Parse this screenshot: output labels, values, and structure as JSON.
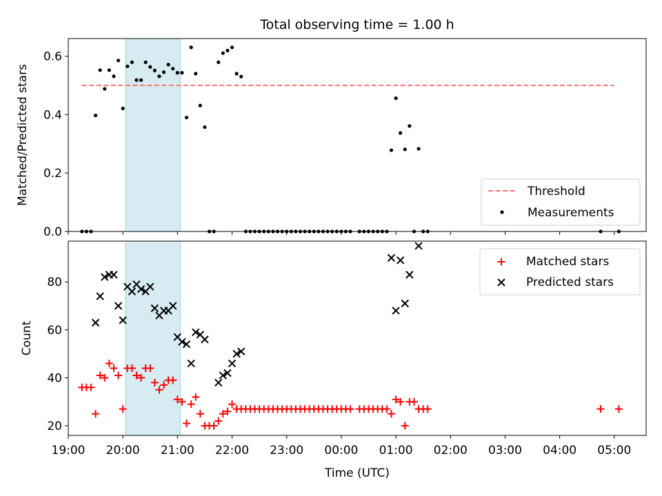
{
  "chart_data": [
    {
      "type": "scatter",
      "title": "Total observing time = 1.00 h",
      "xlabel": "",
      "ylabel": "Matched/Predicted stars",
      "xlim": [
        "19:00",
        "05:35"
      ],
      "ylim": [
        0,
        0.66
      ],
      "yticks": [
        "0.0",
        "0.2",
        "0.4",
        "0.6"
      ],
      "shaded_interval": [
        "20:03",
        "21:03"
      ],
      "legend_position": "lower right",
      "threshold": {
        "name": "Threshold",
        "value": 0.5,
        "x_start": "19:15",
        "x_end": "05:00",
        "color": "#ff7070",
        "style": "dashed"
      },
      "series": [
        {
          "name": "Measurements",
          "color": "#000000",
          "points": [
            [
              "19:15",
              0
            ],
            [
              "19:20",
              0
            ],
            [
              "19:25",
              0
            ],
            [
              "19:30",
              0.397
            ],
            [
              "19:35",
              0.552
            ],
            [
              "19:40",
              0.488
            ],
            [
              "19:45",
              0.552
            ],
            [
              "19:50",
              0.531
            ],
            [
              "19:55",
              0.585
            ],
            [
              "20:00",
              0.421
            ],
            [
              "20:05",
              0.565
            ],
            [
              "20:10",
              0.579
            ],
            [
              "20:15",
              0.518
            ],
            [
              "20:20",
              0.518
            ],
            [
              "20:25",
              0.579
            ],
            [
              "20:30",
              0.563
            ],
            [
              "20:35",
              0.551
            ],
            [
              "20:40",
              0.531
            ],
            [
              "20:45",
              0.545
            ],
            [
              "20:50",
              0.571
            ],
            [
              "20:55",
              0.557
            ],
            [
              "21:00",
              0.543
            ],
            [
              "21:05",
              0.543
            ],
            [
              "21:10",
              0.39
            ],
            [
              "21:15",
              0.63
            ],
            [
              "21:20",
              0.54
            ],
            [
              "21:25",
              0.431
            ],
            [
              "21:30",
              0.357
            ],
            [
              "21:35",
              0
            ],
            [
              "21:40",
              0
            ],
            [
              "21:45",
              0.579
            ],
            [
              "21:50",
              0.61
            ],
            [
              "21:55",
              0.619
            ],
            [
              "22:00",
              0.63
            ],
            [
              "22:05",
              0.54
            ],
            [
              "22:10",
              0.53
            ],
            [
              "22:15",
              0
            ],
            [
              "22:20",
              0
            ],
            [
              "22:25",
              0
            ],
            [
              "22:30",
              0
            ],
            [
              "22:35",
              0
            ],
            [
              "22:40",
              0
            ],
            [
              "22:45",
              0
            ],
            [
              "22:50",
              0
            ],
            [
              "22:55",
              0
            ],
            [
              "23:00",
              0
            ],
            [
              "23:05",
              0
            ],
            [
              "23:10",
              0
            ],
            [
              "23:15",
              0
            ],
            [
              "23:20",
              0
            ],
            [
              "23:25",
              0
            ],
            [
              "23:30",
              0
            ],
            [
              "23:35",
              0
            ],
            [
              "23:40",
              0
            ],
            [
              "23:45",
              0
            ],
            [
              "23:50",
              0
            ],
            [
              "23:55",
              0
            ],
            [
              "00:00",
              0
            ],
            [
              "00:05",
              0
            ],
            [
              "00:10",
              0
            ],
            [
              "00:20",
              0
            ],
            [
              "00:25",
              0
            ],
            [
              "00:30",
              0
            ],
            [
              "00:35",
              0
            ],
            [
              "00:40",
              0
            ],
            [
              "00:45",
              0
            ],
            [
              "00:50",
              0
            ],
            [
              "00:55",
              0.278
            ],
            [
              "01:00",
              0.456
            ],
            [
              "01:05",
              0.337
            ],
            [
              "01:10",
              0.281
            ],
            [
              "01:15",
              0.361
            ],
            [
              "01:20",
              0
            ],
            [
              "01:25",
              0.283
            ],
            [
              "01:30",
              0
            ],
            [
              "01:35",
              0
            ],
            [
              "04:45",
              0
            ],
            [
              "05:05",
              0
            ]
          ]
        }
      ]
    },
    {
      "type": "scatter",
      "title": "",
      "xlabel": "Time (UTC)",
      "ylabel": "Count",
      "xlim": [
        "19:00",
        "05:35"
      ],
      "ylim": [
        16,
        97
      ],
      "yticks": [
        "20",
        "40",
        "60",
        "80"
      ],
      "xticks": [
        "19:00",
        "20:00",
        "21:00",
        "22:00",
        "23:00",
        "00:00",
        "01:00",
        "02:00",
        "03:00",
        "04:00",
        "05:00"
      ],
      "shaded_interval": [
        "20:03",
        "21:03"
      ],
      "legend_position": "upper right",
      "series": [
        {
          "name": "Matched stars",
          "color": "#ff0000",
          "marker": "+",
          "points": [
            [
              "19:15",
              36
            ],
            [
              "19:20",
              36
            ],
            [
              "19:25",
              36
            ],
            [
              "19:30",
              25
            ],
            [
              "19:35",
              41
            ],
            [
              "19:40",
              40
            ],
            [
              "19:45",
              46
            ],
            [
              "19:50",
              44
            ],
            [
              "19:55",
              41
            ],
            [
              "20:00",
              27
            ],
            [
              "20:05",
              44
            ],
            [
              "20:10",
              44
            ],
            [
              "20:15",
              41
            ],
            [
              "20:20",
              40
            ],
            [
              "20:25",
              44
            ],
            [
              "20:30",
              44
            ],
            [
              "20:35",
              38
            ],
            [
              "20:40",
              35
            ],
            [
              "20:45",
              37
            ],
            [
              "20:50",
              39
            ],
            [
              "20:55",
              39
            ],
            [
              "21:00",
              31
            ],
            [
              "21:05",
              30
            ],
            [
              "21:10",
              21
            ],
            [
              "21:15",
              29
            ],
            [
              "21:20",
              32
            ],
            [
              "21:25",
              25
            ],
            [
              "21:30",
              20
            ],
            [
              "21:35",
              20
            ],
            [
              "21:40",
              20
            ],
            [
              "21:45",
              22
            ],
            [
              "21:50",
              25
            ],
            [
              "21:55",
              26
            ],
            [
              "22:00",
              29
            ],
            [
              "22:05",
              27
            ],
            [
              "22:10",
              27
            ],
            [
              "22:15",
              27
            ],
            [
              "22:20",
              27
            ],
            [
              "22:25",
              27
            ],
            [
              "22:30",
              27
            ],
            [
              "22:35",
              27
            ],
            [
              "22:40",
              27
            ],
            [
              "22:45",
              27
            ],
            [
              "22:50",
              27
            ],
            [
              "22:55",
              27
            ],
            [
              "23:00",
              27
            ],
            [
              "23:05",
              27
            ],
            [
              "23:10",
              27
            ],
            [
              "23:15",
              27
            ],
            [
              "23:20",
              27
            ],
            [
              "23:25",
              27
            ],
            [
              "23:30",
              27
            ],
            [
              "23:35",
              27
            ],
            [
              "23:40",
              27
            ],
            [
              "23:45",
              27
            ],
            [
              "23:50",
              27
            ],
            [
              "23:55",
              27
            ],
            [
              "00:00",
              27
            ],
            [
              "00:05",
              27
            ],
            [
              "00:10",
              27
            ],
            [
              "00:20",
              27
            ],
            [
              "00:25",
              27
            ],
            [
              "00:30",
              27
            ],
            [
              "00:35",
              27
            ],
            [
              "00:40",
              27
            ],
            [
              "00:45",
              27
            ],
            [
              "00:50",
              27
            ],
            [
              "00:55",
              25
            ],
            [
              "01:00",
              31
            ],
            [
              "01:05",
              30
            ],
            [
              "01:10",
              20
            ],
            [
              "01:15",
              30
            ],
            [
              "01:20",
              30
            ],
            [
              "01:25",
              27
            ],
            [
              "01:30",
              27
            ],
            [
              "01:35",
              27
            ],
            [
              "04:45",
              27
            ],
            [
              "05:05",
              27
            ]
          ]
        },
        {
          "name": "Predicted stars",
          "color": "#000000",
          "marker": "x",
          "points": [
            [
              "19:30",
              63
            ],
            [
              "19:35",
              74
            ],
            [
              "19:40",
              82
            ],
            [
              "19:45",
              83
            ],
            [
              "19:50",
              83
            ],
            [
              "19:55",
              70
            ],
            [
              "20:00",
              64
            ],
            [
              "20:05",
              78
            ],
            [
              "20:10",
              76
            ],
            [
              "20:15",
              79
            ],
            [
              "20:20",
              77
            ],
            [
              "20:25",
              76
            ],
            [
              "20:30",
              78
            ],
            [
              "20:35",
              69
            ],
            [
              "20:40",
              66
            ],
            [
              "20:45",
              68
            ],
            [
              "20:50",
              68
            ],
            [
              "20:55",
              70
            ],
            [
              "21:00",
              57
            ],
            [
              "21:05",
              55
            ],
            [
              "21:10",
              54
            ],
            [
              "21:15",
              46
            ],
            [
              "21:20",
              59
            ],
            [
              "21:25",
              58
            ],
            [
              "21:30",
              56
            ],
            [
              "21:45",
              38
            ],
            [
              "21:50",
              41
            ],
            [
              "21:55",
              42
            ],
            [
              "22:00",
              46
            ],
            [
              "22:05",
              50
            ],
            [
              "22:10",
              51
            ],
            [
              "00:55",
              90
            ],
            [
              "01:00",
              68
            ],
            [
              "01:05",
              89
            ],
            [
              "01:10",
              71
            ],
            [
              "01:15",
              83
            ],
            [
              "01:25",
              95
            ]
          ]
        }
      ]
    }
  ],
  "shade_color": "#add8e6",
  "axis_color": "#000000"
}
